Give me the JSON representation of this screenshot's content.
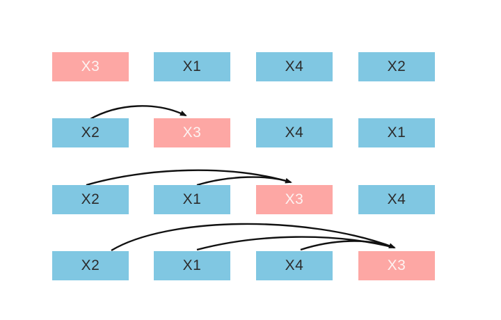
{
  "colors": {
    "normal_fill": "#80c7e2",
    "normal_text": "#2c2c2c",
    "highlight_fill": "#fda7a4",
    "highlight_text": "#fdf3f2",
    "arrow": "#111111"
  },
  "rows": [
    {
      "items": [
        {
          "label": "X3",
          "highlight": true
        },
        {
          "label": "X1",
          "highlight": false
        },
        {
          "label": "X4",
          "highlight": false
        },
        {
          "label": "X2",
          "highlight": false
        }
      ]
    },
    {
      "items": [
        {
          "label": "X2",
          "highlight": false
        },
        {
          "label": "X3",
          "highlight": true
        },
        {
          "label": "X4",
          "highlight": false
        },
        {
          "label": "X1",
          "highlight": false
        }
      ]
    },
    {
      "items": [
        {
          "label": "X2",
          "highlight": false
        },
        {
          "label": "X1",
          "highlight": false
        },
        {
          "label": "X3",
          "highlight": true
        },
        {
          "label": "X4",
          "highlight": false
        }
      ]
    },
    {
      "items": [
        {
          "label": "X2",
          "highlight": false
        },
        {
          "label": "X1",
          "highlight": false
        },
        {
          "label": "X4",
          "highlight": false
        },
        {
          "label": "X3",
          "highlight": true
        }
      ]
    }
  ]
}
